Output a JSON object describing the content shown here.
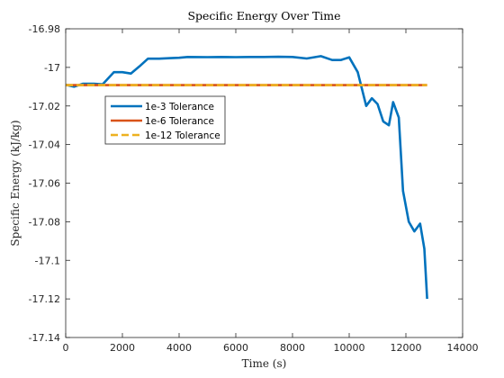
{
  "chart_data": {
    "type": "line",
    "title": "Specific Energy Over Time",
    "xlabel": "Time (s)",
    "ylabel": "Specific Energy (kJ/kg)",
    "xlim": [
      0,
      14000
    ],
    "ylim": [
      -17.14,
      -16.98
    ],
    "xticks": [
      0,
      2000,
      4000,
      6000,
      8000,
      10000,
      12000,
      14000
    ],
    "xtick_labels": [
      "0",
      "2000",
      "4000",
      "6000",
      "8000",
      "10000",
      "12000",
      "14000"
    ],
    "yticks": [
      -16.98,
      -17.0,
      -17.02,
      -17.04,
      -17.06,
      -17.08,
      -17.1,
      -17.12,
      -17.14
    ],
    "ytick_labels": [
      "-16.98",
      "-17",
      "-17.02",
      "-17.04",
      "-17.06",
      "-17.08",
      "-17.1",
      "-17.12",
      "-17.14"
    ],
    "grid": false,
    "legend_position": "upper-left",
    "series": [
      {
        "name": "1e-3 Tolerance",
        "color": "#0072BD",
        "style": "solid",
        "x": [
          0,
          300,
          600,
          1000,
          1300,
          1700,
          2000,
          2300,
          2600,
          2900,
          3300,
          3700,
          4000,
          4300,
          5000,
          5500,
          6000,
          6500,
          7000,
          7500,
          8000,
          8500,
          9000,
          9400,
          9700,
          10000,
          10300,
          10600,
          10800,
          11000,
          11200,
          11400,
          11550,
          11750,
          11900,
          12100,
          12300,
          12500,
          12650,
          12750
        ],
        "y": [
          -17.009,
          -17.01,
          -17.0085,
          -17.0085,
          -17.0088,
          -17.0025,
          -17.0025,
          -17.0032,
          -16.9995,
          -16.9955,
          -16.9955,
          -16.9952,
          -16.995,
          -16.9946,
          -16.9947,
          -16.9946,
          -16.9947,
          -16.9946,
          -16.9946,
          -16.9945,
          -16.9946,
          -16.9954,
          -16.9942,
          -16.9962,
          -16.9962,
          -16.9948,
          -17.0025,
          -17.02,
          -17.016,
          -17.019,
          -17.028,
          -17.03,
          -17.018,
          -17.026,
          -17.064,
          -17.08,
          -17.085,
          -17.081,
          -17.094,
          -17.12
        ]
      },
      {
        "name": "1e-6 Tolerance",
        "color": "#D95319",
        "style": "solid",
        "x": [
          0,
          12750
        ],
        "y": [
          -17.0092,
          -17.0092
        ]
      },
      {
        "name": "1e-12 Tolerance",
        "color": "#EDB120",
        "style": "dashed",
        "x": [
          0,
          12750
        ],
        "y": [
          -17.0092,
          -17.0092
        ]
      }
    ]
  }
}
